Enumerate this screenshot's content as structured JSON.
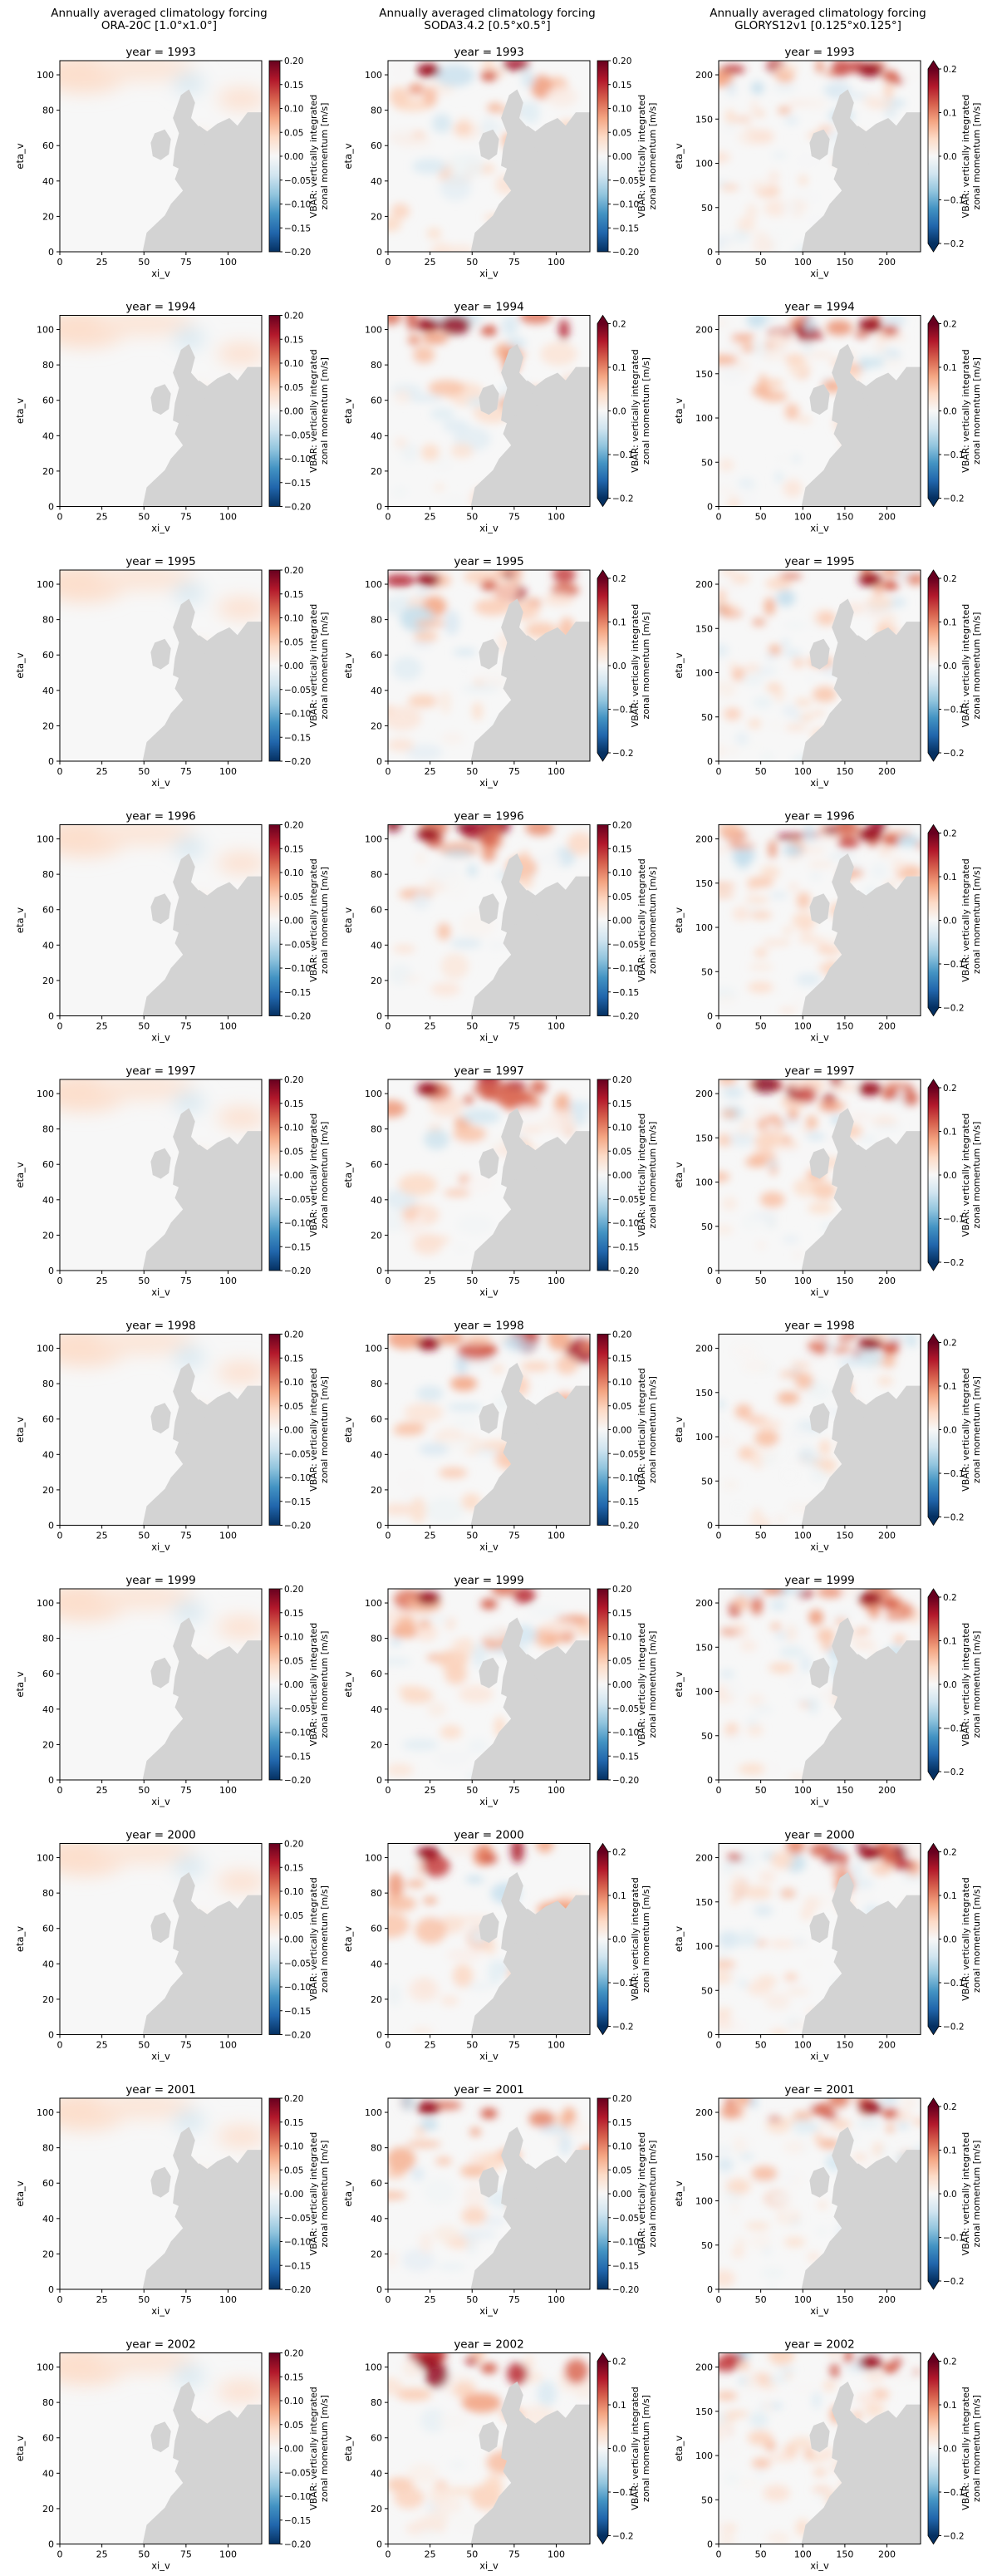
{
  "figure": {
    "column_headers": [
      [
        "Annually averaged climatology forcing",
        "ORA-20C [1.0°x1.0°]"
      ],
      [
        "Annually averaged climatology forcing",
        "SODA3.4.2 [0.5°x0.5°]"
      ],
      [
        "Annually averaged climatology forcing",
        "GLORYS12v1 [0.125°x0.125°]"
      ]
    ],
    "colorbar_label": [
      "VBAR: vertically integrated",
      "zonal momentum [m/s]"
    ],
    "colormap": "RdBu_r",
    "land_color": "#d3d3d3"
  },
  "chart_data": [
    {
      "type": "heatmap",
      "dataset": "ORA-20C [1.0°x1.0°]",
      "xlabel": "xi_v",
      "ylabel": "eta_v",
      "xlim": [
        0,
        120
      ],
      "ylim": [
        0,
        108
      ],
      "xticks": [
        "0",
        "25",
        "50",
        "75",
        "100"
      ],
      "yticks": [
        "0",
        "20",
        "40",
        "60",
        "80",
        "100"
      ],
      "colorbar_ticks": [
        "0.20",
        "0.15",
        "0.10",
        "0.05",
        "0.00",
        "−0.05",
        "−0.10",
        "−0.15",
        "−0.20"
      ],
      "colorbar_range": [
        -0.2,
        0.2
      ],
      "colorbar_extend": false,
      "panels": [
        {
          "title": "year =  1993",
          "pattern": "smooth positive band along northern boundary, weak negative near 75,100"
        },
        {
          "title": "year =  1994",
          "pattern": "smooth positive band along northern boundary"
        },
        {
          "title": "year =  1995",
          "pattern": "smooth positive band along northern boundary"
        },
        {
          "title": "year =  1996",
          "pattern": "smooth positive band along northern boundary"
        },
        {
          "title": "year =  1997",
          "pattern": "smooth positive band along northern boundary"
        },
        {
          "title": "year =  1998",
          "pattern": "smooth positive band along northern boundary"
        },
        {
          "title": "year =  1999",
          "pattern": "smooth positive band along northern boundary"
        },
        {
          "title": "year =  2000",
          "pattern": "smooth positive band along northern boundary"
        },
        {
          "title": "year =  2001",
          "pattern": "smooth positive band along northern boundary"
        },
        {
          "title": "year =  2002",
          "pattern": "smooth positive band along northern boundary"
        }
      ]
    },
    {
      "type": "heatmap",
      "dataset": "SODA3.4.2 [0.5°x0.5°]",
      "xlabel": "xi_v",
      "ylabel": "eta_v",
      "xlim": [
        0,
        120
      ],
      "ylim": [
        0,
        108
      ],
      "xticks": [
        "0",
        "25",
        "50",
        "75",
        "100"
      ],
      "yticks": [
        "0",
        "20",
        "40",
        "60",
        "80",
        "100"
      ],
      "colorbar_range": [
        -0.2,
        0.2
      ],
      "panels": [
        {
          "title": "year =  1993",
          "colorbar_ticks": [
            "0.20",
            "0.15",
            "0.10",
            "0.05",
            "0.00",
            "−0.05",
            "−0.10",
            "−0.15",
            "−0.20"
          ],
          "colorbar_extend": false
        },
        {
          "title": "year =  1994",
          "colorbar_ticks": [
            "0.2",
            "0.1",
            "0.0",
            "−0.1",
            "−0.2"
          ],
          "colorbar_extend": true
        },
        {
          "title": "year =  1995",
          "colorbar_ticks": [
            "0.2",
            "0.1",
            "0.0",
            "−0.1",
            "−0.2"
          ],
          "colorbar_extend": true
        },
        {
          "title": "year =  1996",
          "colorbar_ticks": [
            "0.20",
            "0.15",
            "0.10",
            "0.05",
            "0.00",
            "−0.05",
            "−0.10",
            "−0.15",
            "−0.20"
          ],
          "colorbar_extend": false
        },
        {
          "title": "year =  1997",
          "colorbar_ticks": [
            "0.20",
            "0.15",
            "0.10",
            "0.05",
            "0.00",
            "−0.05",
            "−0.10",
            "−0.15",
            "−0.20"
          ],
          "colorbar_extend": false
        },
        {
          "title": "year =  1998",
          "colorbar_ticks": [
            "0.20",
            "0.15",
            "0.10",
            "0.05",
            "0.00",
            "−0.05",
            "−0.10",
            "−0.15",
            "−0.20"
          ],
          "colorbar_extend": false
        },
        {
          "title": "year =  1999",
          "colorbar_ticks": [
            "0.20",
            "0.15",
            "0.10",
            "0.05",
            "0.00",
            "−0.05",
            "−0.10",
            "−0.15",
            "−0.20"
          ],
          "colorbar_extend": false
        },
        {
          "title": "year =  2000",
          "colorbar_ticks": [
            "0.2",
            "0.1",
            "0.0",
            "−0.1",
            "−0.2"
          ],
          "colorbar_extend": true
        },
        {
          "title": "year =  2001",
          "colorbar_ticks": [
            "0.20",
            "0.15",
            "0.10",
            "0.05",
            "0.00",
            "−0.05",
            "−0.10",
            "−0.15",
            "−0.20"
          ],
          "colorbar_extend": false
        },
        {
          "title": "year =  2002",
          "colorbar_ticks": [
            "0.2",
            "0.1",
            "0.0",
            "−0.1",
            "−0.2"
          ],
          "colorbar_extend": true
        }
      ]
    },
    {
      "type": "heatmap",
      "dataset": "GLORYS12v1 [0.125°x0.125°]",
      "xlabel": "xi_v",
      "ylabel": "eta_v",
      "xlim": [
        0,
        240
      ],
      "ylim": [
        0,
        216
      ],
      "xticks": [
        "0",
        "50",
        "100",
        "150",
        "200"
      ],
      "yticks": [
        "0",
        "50",
        "100",
        "150",
        "200"
      ],
      "colorbar_ticks": [
        "0.2",
        "0.1",
        "0.0",
        "−0.1",
        "−0.2"
      ],
      "colorbar_range": [
        -0.2,
        0.2
      ],
      "colorbar_extend": true,
      "panels": [
        {
          "title": "year =  1993"
        },
        {
          "title": "year =  1994"
        },
        {
          "title": "year =  1995"
        },
        {
          "title": "year =  1996"
        },
        {
          "title": "year =  1997"
        },
        {
          "title": "year =  1998"
        },
        {
          "title": "year =  1999"
        },
        {
          "title": "year =  2000"
        },
        {
          "title": "year =  2001"
        },
        {
          "title": "year =  2002"
        }
      ]
    }
  ]
}
